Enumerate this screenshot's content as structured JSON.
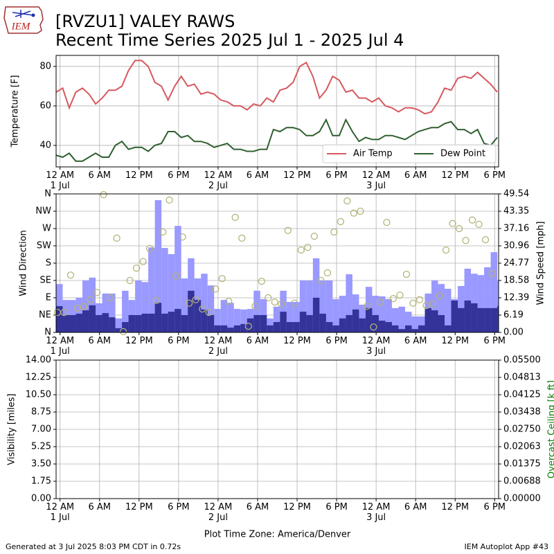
{
  "logo_text": "IEM",
  "footer_left": "Generated at 3 Jul 2025 8:03 PM CDT in 0.72s",
  "footer_right": "IEM Autoplot App #43",
  "chart_data": [
    {
      "type": "line",
      "title": "[RVZU1] VALEY RAWS",
      "subtitle": "Recent Time Series 2025 Jul 1 - 2025 Jul 4",
      "ylabel": "Temperature [F]",
      "grid": true,
      "legend": "lower right",
      "x": [
        0,
        1,
        2,
        3,
        4,
        5,
        6,
        7,
        8,
        9,
        10,
        11,
        12,
        13,
        14,
        15,
        16,
        17,
        18,
        19,
        20,
        21,
        22,
        23,
        24,
        25,
        26,
        27,
        28,
        29,
        30,
        31,
        32,
        33,
        34,
        35,
        36,
        37,
        38,
        39,
        40,
        41,
        42,
        43,
        44,
        45,
        46,
        47,
        48,
        49,
        50,
        51,
        52,
        53,
        54,
        55,
        56,
        57,
        58,
        59,
        60,
        61,
        62,
        63,
        64,
        65,
        66,
        67
      ],
      "xlim": [
        0,
        67.2
      ],
      "xticks": [
        {
          "value": 0.6,
          "label": "12 AM\n1 Jul"
        },
        {
          "value": 6.6,
          "label": "6 AM"
        },
        {
          "value": 12.6,
          "label": "12 PM"
        },
        {
          "value": 18.6,
          "label": "6 PM"
        },
        {
          "value": 24.6,
          "label": "12 AM\n2 Jul"
        },
        {
          "value": 30.6,
          "label": "6 AM"
        },
        {
          "value": 36.6,
          "label": "12 PM"
        },
        {
          "value": 42.6,
          "label": "6 PM"
        },
        {
          "value": 48.6,
          "label": "12 AM\n3 Jul"
        },
        {
          "value": 54.6,
          "label": "6 AM"
        },
        {
          "value": 60.6,
          "label": "12 PM"
        },
        {
          "value": 66.6,
          "label": "6 PM"
        }
      ],
      "ylim": [
        29.1,
        85.6
      ],
      "yticks": [
        40,
        60,
        80
      ],
      "series": [
        {
          "name": "Air Temp",
          "color": "#d6585e",
          "values": [
            67,
            69,
            59,
            67,
            69,
            66,
            61,
            64,
            68,
            68,
            70,
            78,
            83,
            83,
            80,
            72,
            70,
            63,
            70,
            75,
            70,
            71,
            66,
            67,
            66,
            63,
            62,
            60,
            60,
            58,
            61,
            60,
            64,
            62,
            68,
            69,
            72,
            80,
            82,
            75,
            64,
            68,
            75,
            73,
            67,
            68,
            64,
            64,
            62,
            64,
            60,
            59,
            57,
            59,
            59,
            58,
            56,
            57,
            62,
            69,
            68,
            74,
            75,
            74,
            77,
            74,
            71,
            67
          ]
        },
        {
          "name": "Dew Point",
          "color": "#2f5f2f",
          "values": [
            35,
            34,
            36,
            32,
            32,
            34,
            36,
            34,
            34,
            40,
            42,
            38,
            39,
            39,
            37,
            40,
            41,
            47,
            47,
            44,
            45,
            42,
            42,
            41,
            39,
            40,
            41,
            38,
            38,
            37,
            37,
            38,
            38,
            48,
            47,
            49,
            49,
            48,
            45,
            45,
            47,
            53,
            45,
            45,
            53,
            47,
            42,
            44,
            43,
            43,
            45,
            45,
            44,
            43,
            45,
            47,
            48,
            49,
            49,
            51,
            52,
            48,
            48,
            46,
            48,
            41,
            40,
            44
          ]
        }
      ]
    },
    {
      "type": "bar",
      "ylabel": "Wind Direction",
      "y2label": "Wind Speed [mph]",
      "grid": true,
      "x": [
        0,
        1,
        2,
        3,
        4,
        5,
        6,
        7,
        8,
        9,
        10,
        11,
        12,
        13,
        14,
        15,
        16,
        17,
        18,
        19,
        20,
        21,
        22,
        23,
        24,
        25,
        26,
        27,
        28,
        29,
        30,
        31,
        32,
        33,
        34,
        35,
        36,
        37,
        38,
        39,
        40,
        41,
        42,
        43,
        44,
        45,
        46,
        47,
        48,
        49,
        50,
        51,
        52,
        53,
        54,
        55,
        56,
        57,
        58,
        59,
        60,
        61,
        62,
        63,
        64,
        65,
        66,
        67
      ],
      "xlim": [
        0,
        67.2
      ],
      "xticks": [
        {
          "value": 0.6,
          "label": "12 AM\n1 Jul"
        },
        {
          "value": 6.6,
          "label": "6 AM"
        },
        {
          "value": 12.6,
          "label": "12 PM"
        },
        {
          "value": 18.6,
          "label": "6 PM"
        },
        {
          "value": 24.6,
          "label": "12 AM\n2 Jul"
        },
        {
          "value": 30.6,
          "label": "6 AM"
        },
        {
          "value": 36.6,
          "label": "12 PM"
        },
        {
          "value": 42.6,
          "label": "6 PM"
        },
        {
          "value": 48.6,
          "label": "12 AM\n3 Jul"
        },
        {
          "value": 54.6,
          "label": "6 AM"
        },
        {
          "value": 60.6,
          "label": "12 PM"
        },
        {
          "value": 66.6,
          "label": "6 PM"
        }
      ],
      "ylim": [
        0,
        360
      ],
      "yticks": [
        {
          "value": 0,
          "label": "N"
        },
        {
          "value": 45,
          "label": "NE"
        },
        {
          "value": 90,
          "label": "E"
        },
        {
          "value": 135,
          "label": "SE"
        },
        {
          "value": 180,
          "label": "S"
        },
        {
          "value": 225,
          "label": "SW"
        },
        {
          "value": 270,
          "label": "W"
        },
        {
          "value": 315,
          "label": "NW"
        },
        {
          "value": 360,
          "label": "N"
        }
      ],
      "y2lim": [
        0,
        49.54
      ],
      "y2ticks": [
        {
          "value": 0,
          "label": "0.00"
        },
        6.19,
        12.39,
        18.58,
        24.77,
        30.96,
        37.16,
        43.35,
        49.54
      ],
      "series": [
        {
          "type": "bar",
          "axis": "y2",
          "color": "#9999ff",
          "values": [
            17.3,
            11.6,
            11.6,
            12.4,
            18.6,
            19.6,
            10.4,
            13.9,
            13.9,
            5,
            14.9,
            11.6,
            18.6,
            18,
            30.4,
            47.3,
            30.2,
            28,
            38.1,
            19.3,
            26.5,
            19.3,
            21,
            16.8,
            8.4,
            11.6,
            10.6,
            8.4,
            8.2,
            8.4,
            14.9,
            11.9,
            5,
            9.2,
            14.9,
            10.9,
            10.9,
            18.6,
            18.6,
            26.5,
            18.6,
            18.6,
            11.9,
            13.1,
            20.8,
            13.6,
            9.9,
            16.3,
            13.1,
            12.9,
            11.9,
            8.7,
            9.2,
            7.4,
            5.7,
            5.7,
            13.9,
            18.6,
            17.3,
            15.6,
            11.9,
            16.6,
            22.8,
            21,
            20.5,
            23.3,
            28.7,
            18.6
          ]
        },
        {
          "type": "bar",
          "axis": "y2",
          "color": "#333399",
          "values": [
            9.4,
            6.2,
            6.2,
            6.7,
            7.9,
            9.7,
            6.2,
            6.9,
            5.4,
            1.5,
            3.7,
            6.2,
            6.2,
            6.7,
            6.7,
            10.6,
            6.7,
            7.4,
            8.4,
            6.2,
            14.9,
            11.6,
            8.2,
            6.2,
            2.5,
            2.5,
            1.7,
            2.5,
            3,
            5,
            6.2,
            6.2,
            2.5,
            3.7,
            7.4,
            3.7,
            3.7,
            7.4,
            6.2,
            12.4,
            6.7,
            3.7,
            2.5,
            5,
            6.2,
            8.2,
            5,
            8.7,
            6.2,
            4.2,
            3.7,
            2.5,
            1.2,
            2.5,
            1.2,
            2.5,
            8.7,
            7.9,
            6.2,
            2.5,
            11.4,
            8.7,
            11.4,
            10.4,
            8.7,
            8.7,
            8.7,
            9.4
          ]
        },
        {
          "type": "scatter",
          "color": "#b3b378",
          "values": [
            52,
            52,
            149,
            63,
            67,
            85,
            104,
            358,
            90,
            245,
            2,
            135,
            167,
            184,
            218,
            83,
            261,
            344,
            146,
            248,
            76,
            85,
            61,
            52,
            113,
            140,
            81,
            299,
            245,
            16,
            68,
            133,
            90,
            79,
            74,
            265,
            76,
            214,
            221,
            250,
            135,
            155,
            261,
            288,
            342,
            310,
            315,
            68,
            14,
            79,
            286,
            88,
            97,
            151,
            76,
            85,
            70,
            74,
            95,
            214,
            283,
            270,
            239,
            292,
            281,
            241,
            153,
            null
          ]
        }
      ]
    },
    {
      "type": "line",
      "ylabel": "Visibility [miles]",
      "y2label": "Overcast Ceiling [k ft]",
      "y2label_color": "#008000",
      "xlabel": "Plot Time Zone: America/Denver",
      "grid": true,
      "xlim": [
        0,
        67.2
      ],
      "xticks": [
        {
          "value": 0.6,
          "label": "12 AM\n1 Jul"
        },
        {
          "value": 6.6,
          "label": "6 AM"
        },
        {
          "value": 12.6,
          "label": "12 PM"
        },
        {
          "value": 18.6,
          "label": "6 PM"
        },
        {
          "value": 24.6,
          "label": "12 AM\n2 Jul"
        },
        {
          "value": 30.6,
          "label": "6 AM"
        },
        {
          "value": 36.6,
          "label": "12 PM"
        },
        {
          "value": 42.6,
          "label": "6 PM"
        },
        {
          "value": 48.6,
          "label": "12 AM\n3 Jul"
        },
        {
          "value": 54.6,
          "label": "6 AM"
        },
        {
          "value": 60.6,
          "label": "12 PM"
        },
        {
          "value": 66.6,
          "label": "6 PM"
        }
      ],
      "ylim": [
        0,
        14
      ],
      "yticks": [
        {
          "value": 0,
          "label": "0.00"
        },
        1.75,
        {
          "value": 3.5,
          "label": "3.50"
        },
        5.25,
        {
          "value": 7,
          "label": "7.00"
        },
        8.75,
        {
          "value": 10.5,
          "label": "10.50"
        },
        12.25,
        {
          "value": 14,
          "label": "14.00"
        }
      ],
      "y2lim": [
        0,
        0.055
      ],
      "y2ticks": [
        {
          "value": 0,
          "label": "0.00000"
        },
        0.00688,
        0.01375,
        0.02063,
        {
          "value": 0.0275,
          "label": "0.02750"
        },
        0.03438,
        0.04125,
        0.04813,
        {
          "value": 0.055,
          "label": "0.05500"
        }
      ],
      "series": []
    }
  ]
}
